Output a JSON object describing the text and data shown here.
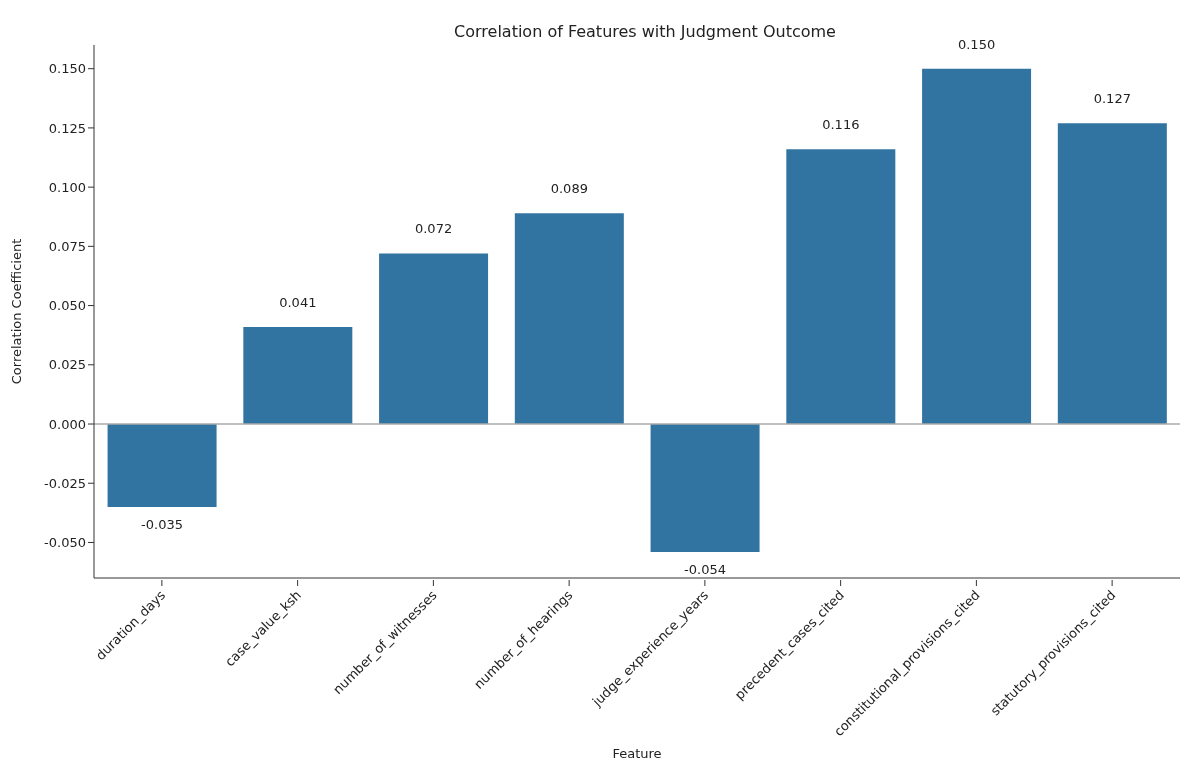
{
  "chart_data": {
    "type": "bar",
    "title": "Correlation of Features with Judgment Outcome",
    "xlabel": "Feature",
    "ylabel": "Correlation Coefficient",
    "categories": [
      "duration_days",
      "case_value_ksh",
      "number_of_witnesses",
      "number_of_hearings",
      "judge_experience_years",
      "precedent_cases_cited",
      "constitutional_provisions_cited",
      "statutory_provisions_cited"
    ],
    "values": [
      -0.035,
      0.041,
      0.072,
      0.089,
      -0.054,
      0.116,
      0.15,
      0.127
    ],
    "value_labels": [
      "-0.035",
      "0.041",
      "0.072",
      "0.089",
      "-0.054",
      "0.116",
      "0.150",
      "0.127"
    ],
    "color": "#3274a1",
    "ylim": [
      -0.065,
      0.16
    ],
    "yticks": [
      {
        "value": -0.05,
        "label": "-0.050"
      },
      {
        "value": -0.025,
        "label": "-0.025"
      },
      {
        "value": 0,
        "label": "0.000"
      },
      {
        "value": 0.025,
        "label": "0.025"
      },
      {
        "value": 0.05,
        "label": "0.050"
      },
      {
        "value": 0.075,
        "label": "0.075"
      },
      {
        "value": 0.1,
        "label": "0.100"
      },
      {
        "value": 0.125,
        "label": "0.125"
      },
      {
        "value": 0.15,
        "label": "0.150"
      }
    ],
    "ref_lines": [
      {
        "axis": "y",
        "value": 0,
        "color": "#aaaaaa"
      }
    ],
    "grid": false,
    "legend": false
  }
}
